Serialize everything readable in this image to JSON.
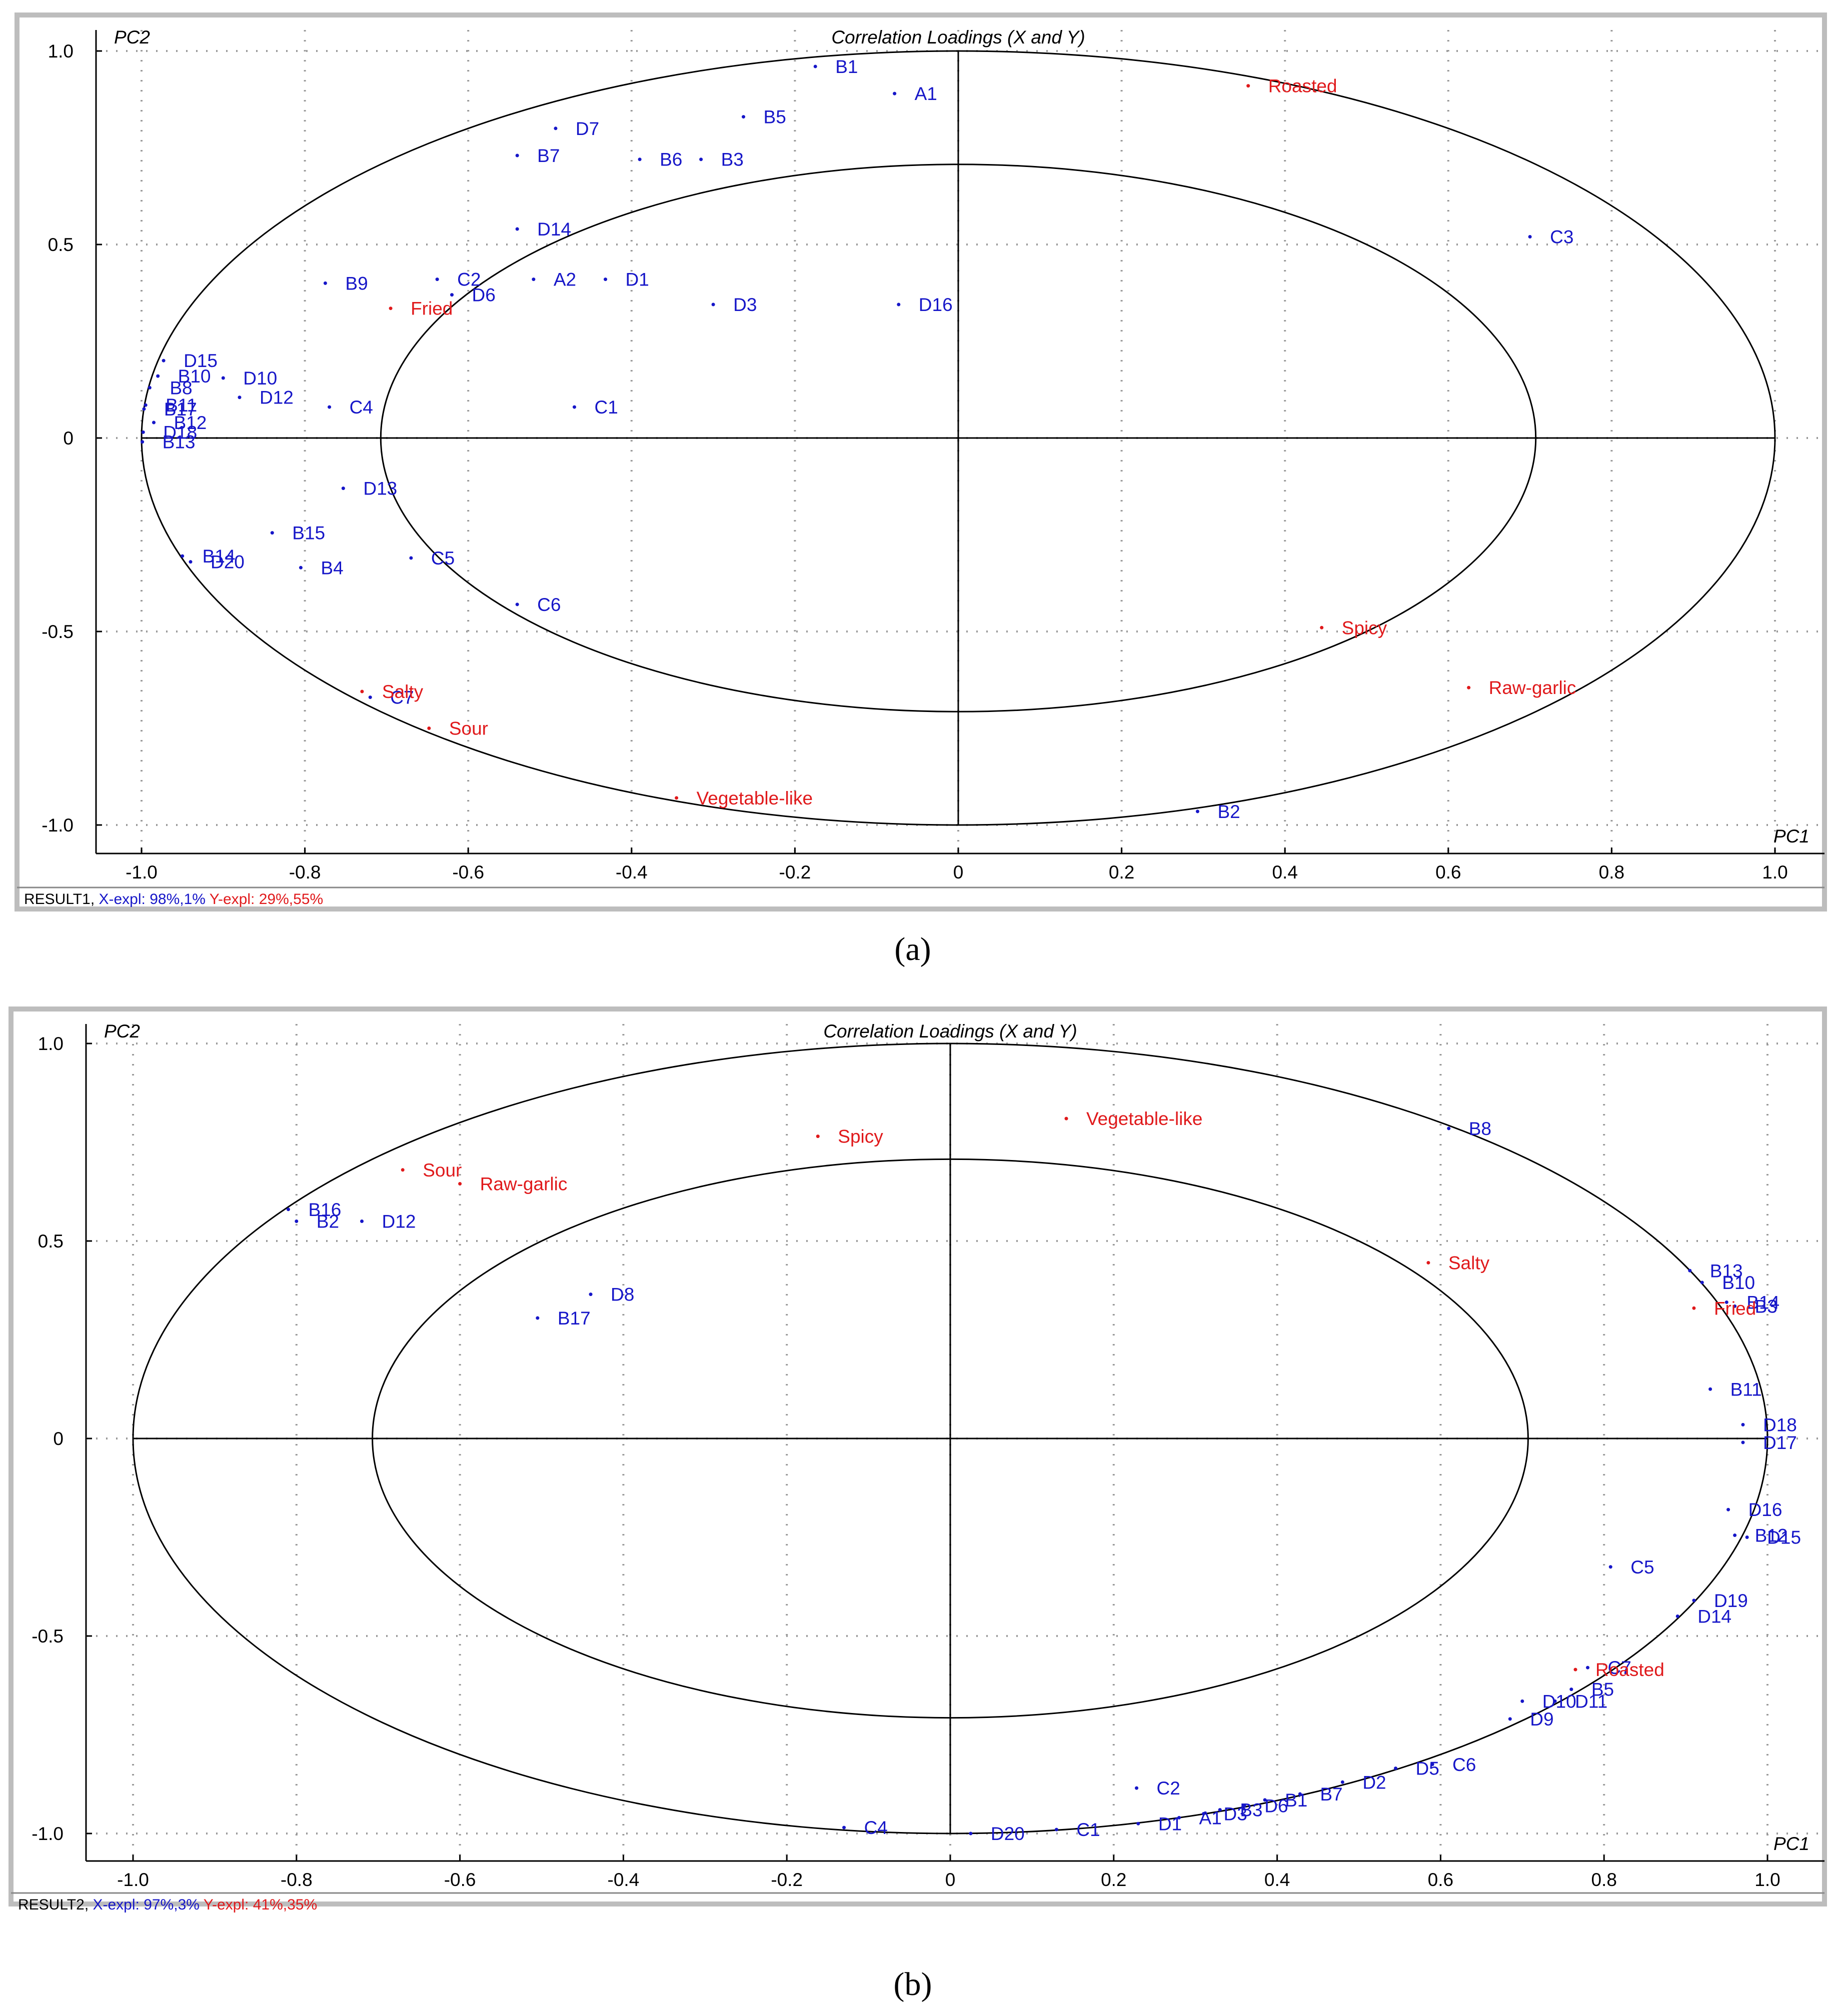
{
  "chart_data": [
    {
      "type": "scatter",
      "title": "Correlation Loadings (X and Y)",
      "xlabel": "PC1",
      "ylabel": "PC2",
      "xlim": [
        -1.0,
        1.0
      ],
      "ylim": [
        -1.0,
        1.0
      ],
      "xticks": [
        "-1.0",
        "-0.8",
        "-0.6",
        "-0.4",
        "-0.2",
        "0",
        "0.2",
        "0.4",
        "0.6",
        "0.8",
        "1.0"
      ],
      "yticks": [
        "1.0",
        "0.5",
        "0",
        "-0.5",
        "-1.0"
      ],
      "grid": true,
      "circles": [
        1.0,
        0.7071
      ],
      "status": {
        "result": "RESULT1,",
        "x_expl": "X-expl: 98%,1%",
        "y_expl": "Y-expl: 29%,55%"
      },
      "caption": "(a)",
      "series": [
        {
          "name": "X",
          "color": "#1616c8",
          "points": [
            {
              "label": "B1",
              "x": -0.175,
              "y": 0.96
            },
            {
              "label": "A1",
              "x": -0.078,
              "y": 0.89
            },
            {
              "label": "B5",
              "x": -0.263,
              "y": 0.83
            },
            {
              "label": "D7",
              "x": -0.493,
              "y": 0.8
            },
            {
              "label": "B7",
              "x": -0.54,
              "y": 0.73
            },
            {
              "label": "B6",
              "x": -0.39,
              "y": 0.72
            },
            {
              "label": "B3",
              "x": -0.315,
              "y": 0.72
            },
            {
              "label": "D14",
              "x": -0.54,
              "y": 0.54
            },
            {
              "label": "C3",
              "x": 0.7,
              "y": 0.52
            },
            {
              "label": "C2",
              "x": -0.638,
              "y": 0.41
            },
            {
              "label": "A2",
              "x": -0.52,
              "y": 0.41
            },
            {
              "label": "D1",
              "x": -0.432,
              "y": 0.41
            },
            {
              "label": "B9",
              "x": -0.775,
              "y": 0.4
            },
            {
              "label": "D6",
              "x": -0.62,
              "y": 0.37
            },
            {
              "label": "D3",
              "x": -0.3,
              "y": 0.345
            },
            {
              "label": "D16",
              "x": -0.073,
              "y": 0.345
            },
            {
              "label": "D15",
              "x": -0.973,
              "y": 0.2
            },
            {
              "label": "B10",
              "x": -0.98,
              "y": 0.16
            },
            {
              "label": "D10",
              "x": -0.9,
              "y": 0.155
            },
            {
              "label": "B8",
              "x": -0.99,
              "y": 0.13
            },
            {
              "label": "D12",
              "x": -0.88,
              "y": 0.105
            },
            {
              "label": "B11",
              "x": -0.995,
              "y": 0.085
            },
            {
              "label": "B17",
              "x": -0.997,
              "y": 0.075
            },
            {
              "label": "C4",
              "x": -0.77,
              "y": 0.08
            },
            {
              "label": "C1",
              "x": -0.47,
              "y": 0.08
            },
            {
              "label": "B12",
              "x": -0.985,
              "y": 0.04
            },
            {
              "label": "D18",
              "x": -0.998,
              "y": 0.015
            },
            {
              "label": "B13",
              "x": -0.999,
              "y": -0.01
            },
            {
              "label": "D13",
              "x": -0.753,
              "y": -0.13
            },
            {
              "label": "B15",
              "x": -0.84,
              "y": -0.245
            },
            {
              "label": "B14",
              "x": -0.95,
              "y": -0.305
            },
            {
              "label": "D20",
              "x": -0.94,
              "y": -0.32
            },
            {
              "label": "B4",
              "x": -0.805,
              "y": -0.335
            },
            {
              "label": "C5",
              "x": -0.67,
              "y": -0.31
            },
            {
              "label": "C6",
              "x": -0.54,
              "y": -0.43
            },
            {
              "label": "C7",
              "x": -0.72,
              "y": -0.67
            },
            {
              "label": "B2",
              "x": 0.293,
              "y": -0.965
            }
          ]
        },
        {
          "name": "Y",
          "color": "#e0191b",
          "points": [
            {
              "label": "Roasted",
              "x": 0.355,
              "y": 0.91
            },
            {
              "label": "Fried",
              "x": -0.695,
              "y": 0.335
            },
            {
              "label": "Spicy",
              "x": 0.445,
              "y": -0.49
            },
            {
              "label": "Raw-garlic",
              "x": 0.625,
              "y": -0.645
            },
            {
              "label": "Salty",
              "x": -0.73,
              "y": -0.655
            },
            {
              "label": "Sour",
              "x": -0.648,
              "y": -0.75
            },
            {
              "label": "Vegetable-like",
              "x": -0.345,
              "y": -0.93
            }
          ]
        }
      ]
    },
    {
      "type": "scatter",
      "title": "Correlation Loadings (X and Y)",
      "xlabel": "PC1",
      "ylabel": "PC2",
      "xlim": [
        -1.0,
        1.0
      ],
      "ylim": [
        -1.0,
        1.0
      ],
      "xticks": [
        "-1.0",
        "-0.8",
        "-0.6",
        "-0.4",
        "-0.2",
        "0",
        "0.2",
        "0.4",
        "0.6",
        "0.8",
        "1.0"
      ],
      "yticks": [
        "1.0",
        "0.5",
        "0",
        "-0.5",
        "-1.0"
      ],
      "grid": true,
      "circles": [
        1.0,
        0.7071
      ],
      "status": {
        "result": "RESULT2,",
        "x_expl": "X-expl: 97%,3%",
        "y_expl": "Y-expl: 41%,35%"
      },
      "caption": "(b)",
      "series": [
        {
          "name": "X",
          "color": "#1616c8",
          "points": [
            {
              "label": "B8",
              "x": 0.61,
              "y": 0.785
            },
            {
              "label": "B16",
              "x": -0.81,
              "y": 0.58
            },
            {
              "label": "B2",
              "x": -0.8,
              "y": 0.55
            },
            {
              "label": "D12",
              "x": -0.72,
              "y": 0.55
            },
            {
              "label": "D8",
              "x": -0.44,
              "y": 0.365
            },
            {
              "label": "B17",
              "x": -0.505,
              "y": 0.305
            },
            {
              "label": "B13",
              "x": 0.905,
              "y": 0.425
            },
            {
              "label": "B10",
              "x": 0.92,
              "y": 0.395
            },
            {
              "label": "B14",
              "x": 0.95,
              "y": 0.345
            },
            {
              "label": "B3",
              "x": 0.96,
              "y": 0.335
            },
            {
              "label": "B11",
              "x": 0.93,
              "y": 0.125
            },
            {
              "label": "D18",
              "x": 0.97,
              "y": 0.035
            },
            {
              "label": "D17",
              "x": 0.97,
              "y": -0.01
            },
            {
              "label": "D16",
              "x": 0.952,
              "y": -0.18
            },
            {
              "label": "B12",
              "x": 0.96,
              "y": -0.245
            },
            {
              "label": "D15",
              "x": 0.975,
              "y": -0.25
            },
            {
              "label": "C5",
              "x": 0.808,
              "y": -0.325
            },
            {
              "label": "D19",
              "x": 0.91,
              "y": -0.41
            },
            {
              "label": "D14",
              "x": 0.89,
              "y": -0.45
            },
            {
              "label": "C7",
              "x": 0.78,
              "y": -0.58
            },
            {
              "label": "B5",
              "x": 0.76,
              "y": -0.635
            },
            {
              "label": "D10",
              "x": 0.7,
              "y": -0.665
            },
            {
              "label": "D11",
              "x": 0.74,
              "y": -0.665
            },
            {
              "label": "D9",
              "x": 0.685,
              "y": -0.71
            },
            {
              "label": "C6",
              "x": 0.59,
              "y": -0.825
            },
            {
              "label": "D5",
              "x": 0.545,
              "y": -0.835
            },
            {
              "label": "D2",
              "x": 0.48,
              "y": -0.87
            },
            {
              "label": "B7",
              "x": 0.428,
              "y": -0.9
            },
            {
              "label": "B1",
              "x": 0.385,
              "y": -0.915
            },
            {
              "label": "D6",
              "x": 0.36,
              "y": -0.93
            },
            {
              "label": "B3",
              "x": 0.33,
              "y": -0.94
            },
            {
              "label": "D3",
              "x": 0.31,
              "y": -0.95
            },
            {
              "label": "A1",
              "x": 0.28,
              "y": -0.96
            },
            {
              "label": "D1",
              "x": 0.23,
              "y": -0.975
            },
            {
              "label": "C2",
              "x": 0.228,
              "y": -0.885
            },
            {
              "label": "C1",
              "x": 0.13,
              "y": -0.99
            },
            {
              "label": "D20",
              "x": 0.025,
              "y": -1.0
            },
            {
              "label": "C4",
              "x": -0.13,
              "y": -0.985
            }
          ]
        },
        {
          "name": "Y",
          "color": "#e0191b",
          "points": [
            {
              "label": "Vegetable-like",
              "x": 0.142,
              "y": 0.81
            },
            {
              "label": "Spicy",
              "x": -0.162,
              "y": 0.765
            },
            {
              "label": "Sour",
              "x": -0.67,
              "y": 0.68
            },
            {
              "label": "Raw-garlic",
              "x": -0.6,
              "y": 0.645
            },
            {
              "label": "Salty",
              "x": 0.585,
              "y": 0.445
            },
            {
              "label": "Fried",
              "x": 0.91,
              "y": 0.33
            },
            {
              "label": "Roasted",
              "x": 0.765,
              "y": -0.585
            }
          ]
        }
      ]
    }
  ]
}
